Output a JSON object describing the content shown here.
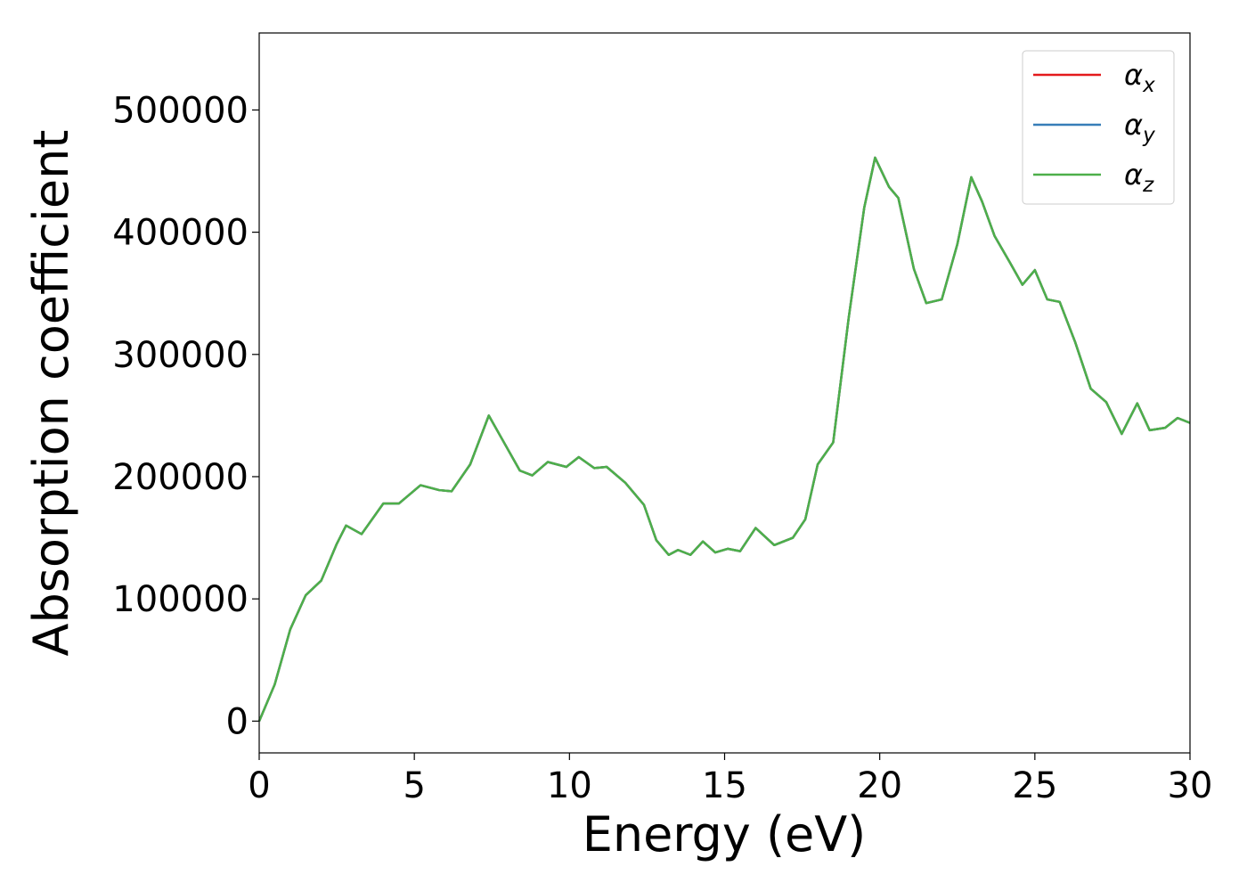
{
  "chart_data": {
    "type": "line",
    "xlabel": "Energy (eV)",
    "ylabel": "Absorption coefficient",
    "x": [
      0,
      0.5,
      1,
      1.5,
      2,
      2.5,
      2.8,
      3.3,
      4,
      4.5,
      5.2,
      5.8,
      6.2,
      6.8,
      7.4,
      7.8,
      8.4,
      8.8,
      9.3,
      9.9,
      10.3,
      10.8,
      11.2,
      11.8,
      12.4,
      12.8,
      13.2,
      13.5,
      13.9,
      14.3,
      14.7,
      15.1,
      15.5,
      16.0,
      16.6,
      17.2,
      17.6,
      18.0,
      18.5,
      19.0,
      19.5,
      19.85,
      20.3,
      20.6,
      21.1,
      21.5,
      22.0,
      22.5,
      22.95,
      23.3,
      23.7,
      24.2,
      24.6,
      25.0,
      25.4,
      25.8,
      26.3,
      26.8,
      27.3,
      27.8,
      28.3,
      28.7,
      29.2,
      29.6,
      30
    ],
    "series": [
      {
        "name": "αx",
        "color": "#e41a1c",
        "values": [
          0,
          30000,
          75000,
          103000,
          115000,
          145000,
          160000,
          153000,
          178000,
          178000,
          193000,
          189000,
          188000,
          210000,
          250000,
          232000,
          205000,
          201000,
          212000,
          208000,
          216000,
          207000,
          208000,
          195000,
          177000,
          148000,
          136000,
          140000,
          136000,
          147000,
          138000,
          141000,
          139000,
          158000,
          144000,
          150000,
          165000,
          210000,
          228000,
          330000,
          420000,
          461000,
          437000,
          428000,
          370000,
          342000,
          345000,
          390000,
          445000,
          425000,
          397000,
          375000,
          357000,
          369000,
          345000,
          343000,
          310000,
          272000,
          261000,
          235000,
          260000,
          238000,
          240000,
          248000,
          244000
        ]
      },
      {
        "name": "αy",
        "color": "#377eb8",
        "values": [
          0,
          30000,
          75000,
          103000,
          115000,
          145000,
          160000,
          153000,
          178000,
          178000,
          193000,
          189000,
          188000,
          210000,
          250000,
          232000,
          205000,
          201000,
          212000,
          208000,
          216000,
          207000,
          208000,
          195000,
          177000,
          148000,
          136000,
          140000,
          136000,
          147000,
          138000,
          141000,
          139000,
          158000,
          144000,
          150000,
          165000,
          210000,
          228000,
          330000,
          420000,
          461000,
          437000,
          428000,
          370000,
          342000,
          345000,
          390000,
          445000,
          425000,
          397000,
          375000,
          357000,
          369000,
          345000,
          343000,
          310000,
          272000,
          261000,
          235000,
          260000,
          238000,
          240000,
          248000,
          244000
        ]
      },
      {
        "name": "αz",
        "color": "#4daf4a",
        "values": [
          0,
          30000,
          75000,
          103000,
          115000,
          145000,
          160000,
          153000,
          178000,
          178000,
          193000,
          189000,
          188000,
          210000,
          250000,
          232000,
          205000,
          201000,
          212000,
          208000,
          216000,
          207000,
          208000,
          195000,
          177000,
          148000,
          136000,
          140000,
          136000,
          147000,
          138000,
          141000,
          139000,
          158000,
          144000,
          150000,
          165000,
          210000,
          228000,
          330000,
          420000,
          461000,
          437000,
          428000,
          370000,
          342000,
          345000,
          390000,
          445000,
          425000,
          397000,
          375000,
          357000,
          369000,
          345000,
          343000,
          310000,
          272000,
          261000,
          235000,
          260000,
          238000,
          240000,
          248000,
          244000
        ]
      }
    ],
    "xlim": [
      0,
      30
    ],
    "xticks": [
      0,
      5,
      10,
      15,
      20,
      25,
      30
    ],
    "ylim": [
      -26000,
      563000
    ],
    "yticks": [
      0,
      100000,
      200000,
      300000,
      400000,
      500000
    ],
    "grid": false,
    "legend": "upper right"
  }
}
